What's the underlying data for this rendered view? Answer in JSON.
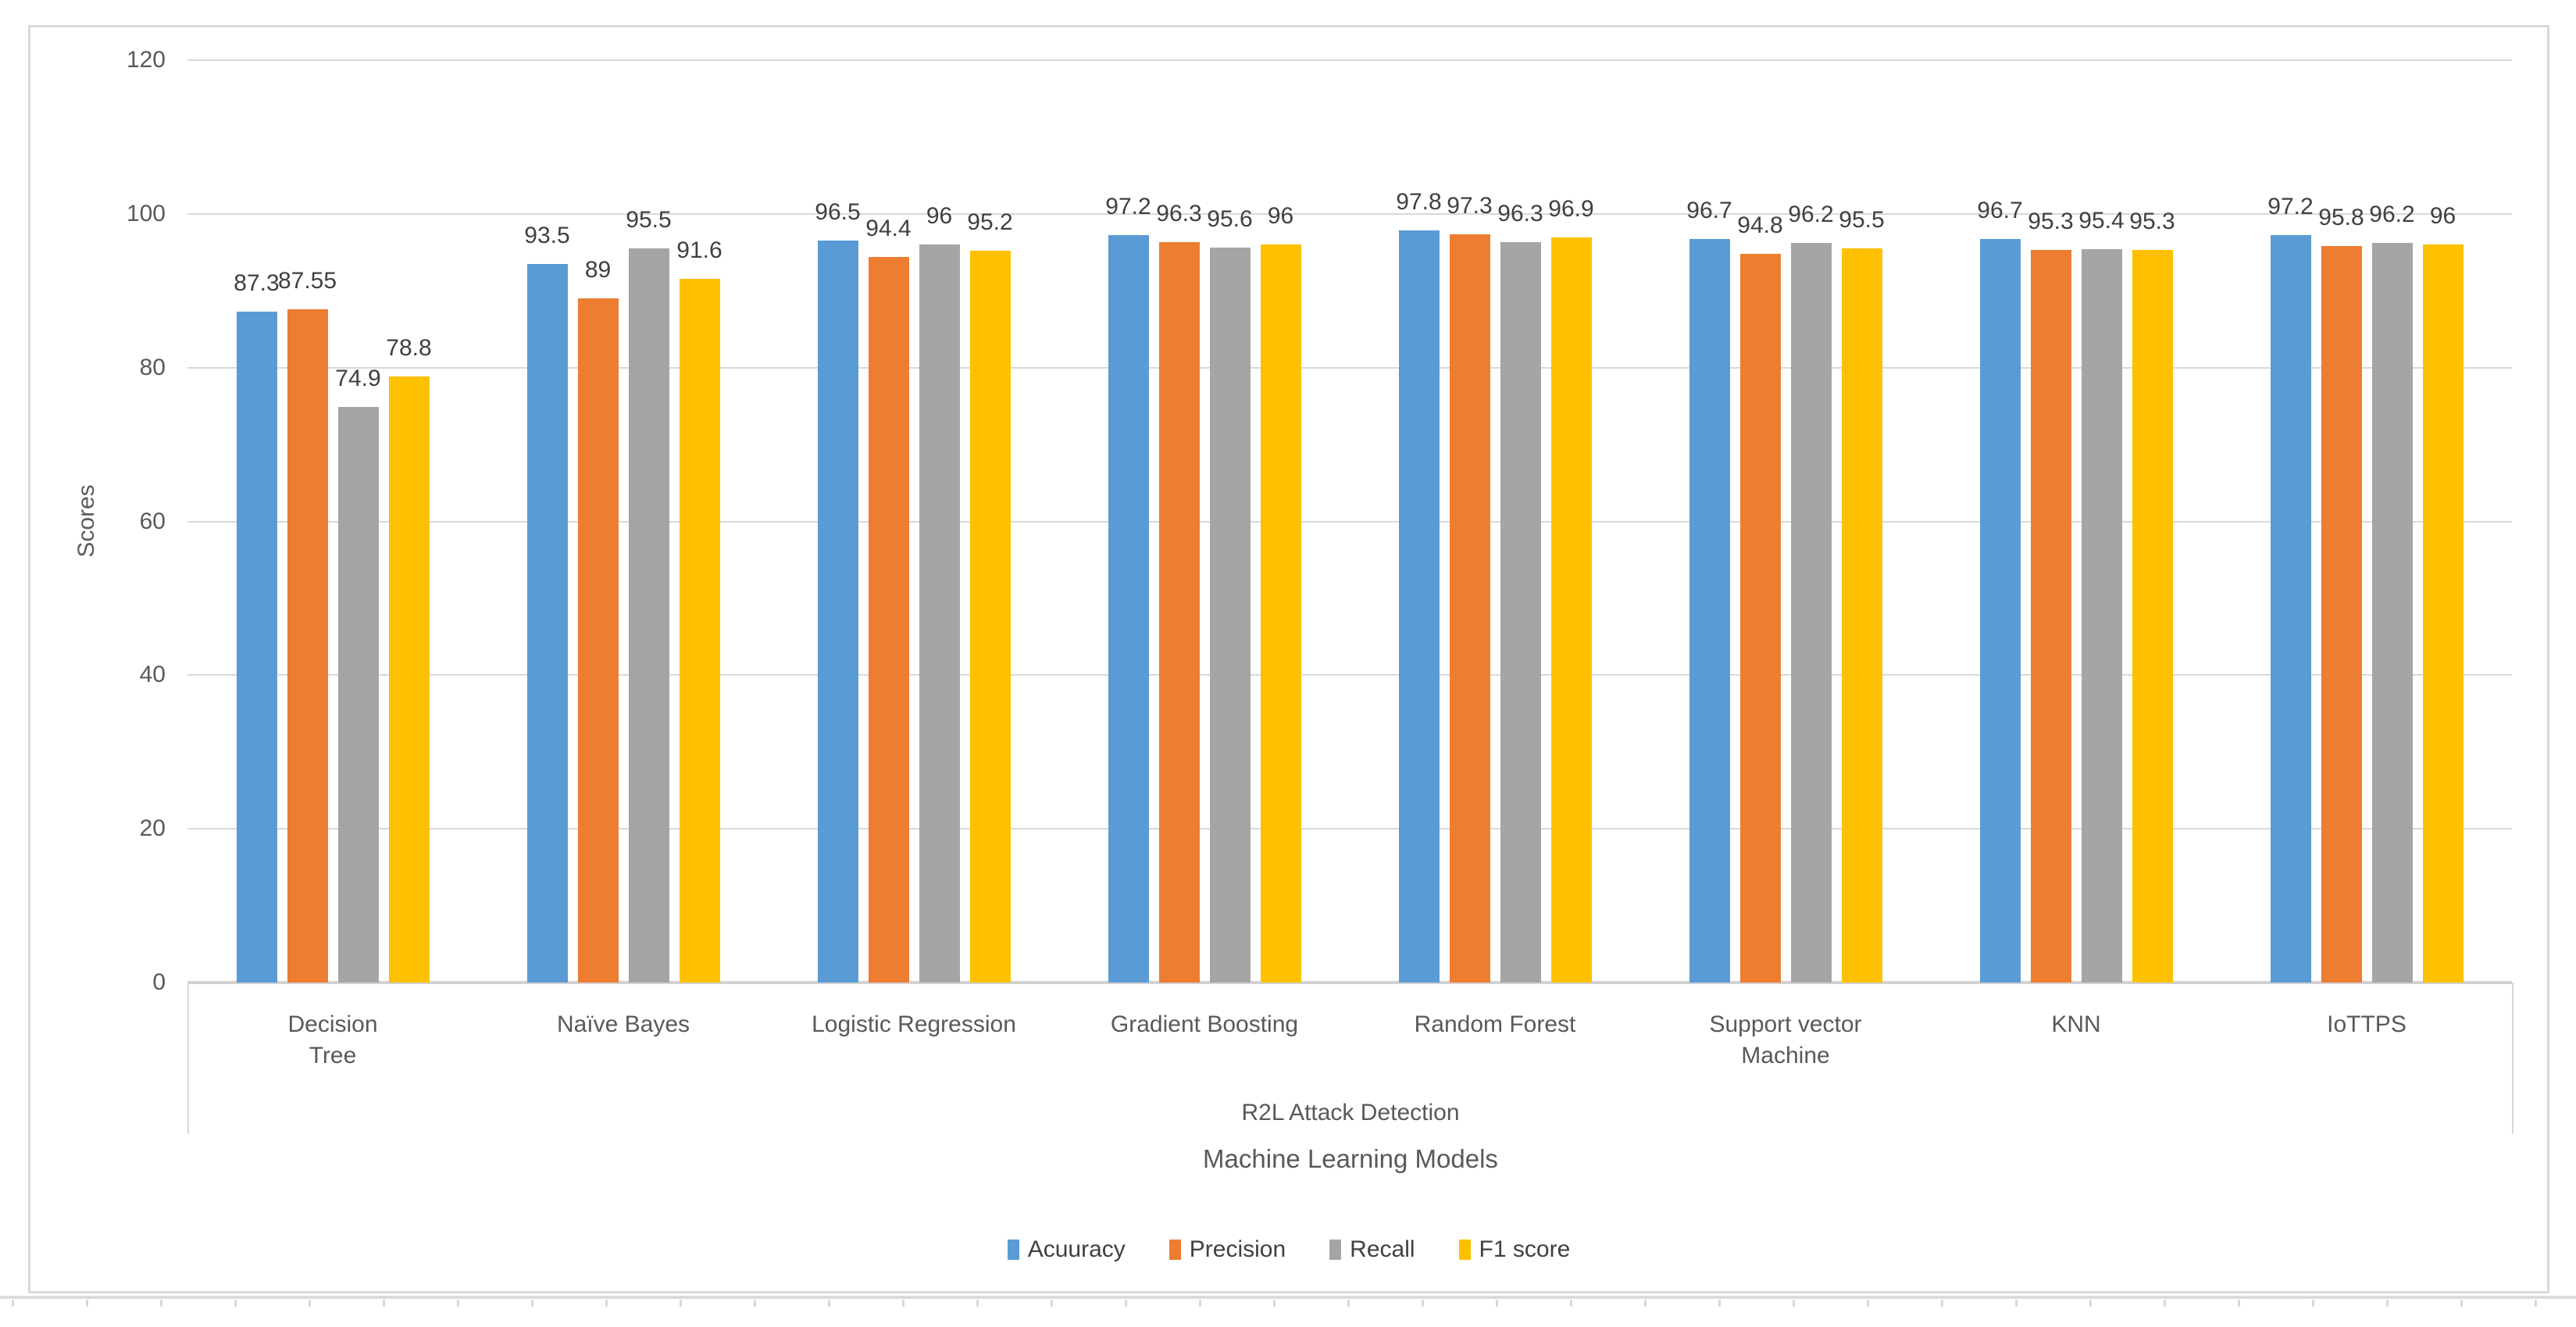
{
  "chart_data": {
    "type": "bar",
    "title": "",
    "categories": [
      "Decision\nTree",
      "Naïve Bayes",
      "Logistic Regression",
      "Gradient Boosting",
      "Random Forest",
      "Support vector\nMachine",
      "KNN",
      "IoTTPS"
    ],
    "series": [
      {
        "name": "Acuuracy",
        "color": "#5B9BD5",
        "values": [
          87.3,
          93.5,
          96.5,
          97.2,
          97.8,
          96.7,
          96.7,
          97.2
        ]
      },
      {
        "name": "Precision",
        "color": "#ED7D31",
        "values": [
          87.55,
          89,
          94.4,
          96.3,
          97.3,
          94.8,
          95.3,
          95.8
        ]
      },
      {
        "name": "Recall",
        "color": "#A5A5A5",
        "values": [
          74.9,
          95.5,
          96,
          95.6,
          96.3,
          96.2,
          95.4,
          96.2
        ]
      },
      {
        "name": "F1 score",
        "color": "#FFC000",
        "values": [
          78.8,
          91.6,
          95.2,
          96,
          96.9,
          95.5,
          95.3,
          96
        ]
      }
    ],
    "xlabel_primary": "R2L Attack Detection",
    "xlabel_secondary": "Machine Learning Models",
    "ylabel": "Scores",
    "ylim": [
      0,
      120
    ],
    "yticks": [
      0,
      20,
      40,
      60,
      80,
      100,
      120
    ],
    "grid": true,
    "legend_position": "bottom",
    "data_labels": true
  },
  "colors": {
    "gridline": "#D9D9D9",
    "baseline": "#D2D2D2",
    "frame_border": "#D9D9D9",
    "axis_text": "#595959",
    "data_label_text": "#404040"
  }
}
